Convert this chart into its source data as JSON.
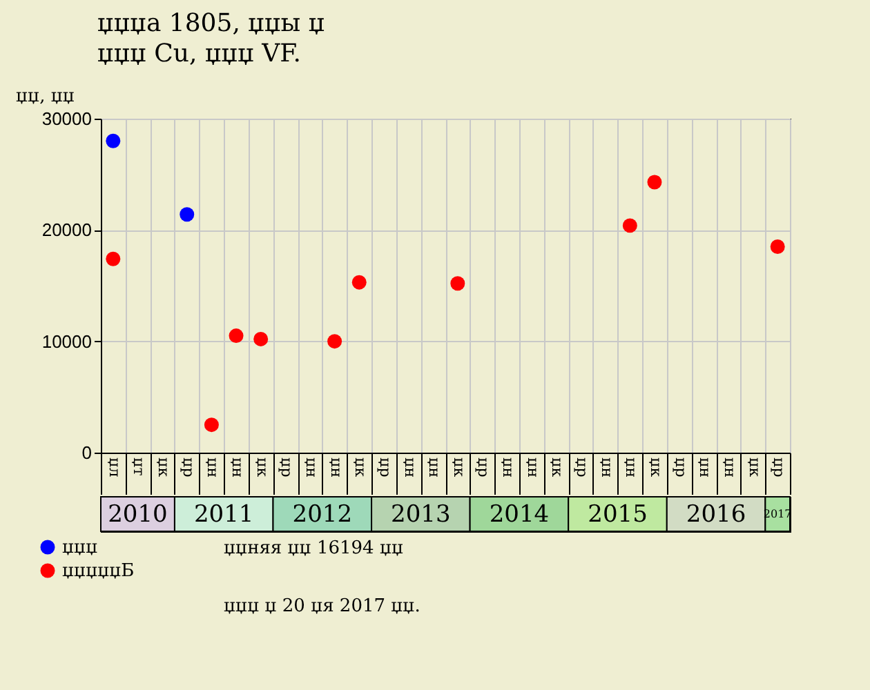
{
  "chart_data": {
    "type": "scatter",
    "title": "џџџа 1805, џџы џ",
    "subtitle": "џџџ Cu, џџџ VF.",
    "ylabel": "џџ, џџ",
    "categories": [
      "џл",
      "џт",
      "џк",
      "џр",
      "џн",
      "џн",
      "џк",
      "џр",
      "џн",
      "џн",
      "џк",
      "џр",
      "џн",
      "џн",
      "џк",
      "џр",
      "џн",
      "џн",
      "џк",
      "џр",
      "џн",
      "џн",
      "џк",
      "џр",
      "џн",
      "џн",
      "џк",
      "џр"
    ],
    "series": [
      {
        "name": "џџџ",
        "color": "#0000ff",
        "values": [
          28000,
          null,
          null,
          21400,
          null,
          null,
          null,
          null,
          null,
          null,
          null,
          null,
          null,
          null,
          null,
          null,
          null,
          null,
          null,
          null,
          null,
          null,
          null,
          null,
          null,
          null,
          null,
          null
        ]
      },
      {
        "name": "џџџџџБ",
        "color": "#ff0000",
        "values": [
          17400,
          null,
          null,
          null,
          2500,
          10500,
          10200,
          null,
          null,
          10000,
          15300,
          null,
          null,
          null,
          15200,
          null,
          null,
          null,
          null,
          null,
          null,
          20400,
          24300,
          null,
          null,
          null,
          null,
          18500
        ]
      }
    ],
    "ylim": [
      0,
      30000
    ],
    "yticks": [
      0,
      10000,
      20000,
      30000
    ],
    "grid": true,
    "legend": "bottom left",
    "marker": "circle",
    "annotations": [
      "2010",
      "2011",
      "2012",
      "2013",
      "2014",
      "2015",
      "2016",
      "2017",
      "џџняя џџ 16194 џџ\nџџџ џ 20 џя 2017 џџ."
    ]
  }
}
